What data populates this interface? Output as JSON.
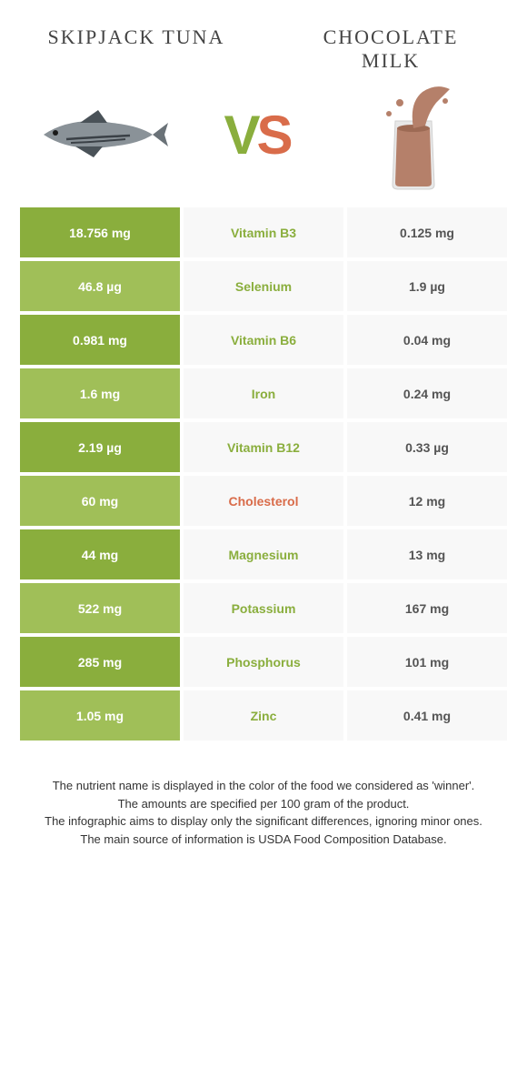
{
  "header": {
    "left": "Skipjack tuna",
    "right": "Chocolate milk"
  },
  "vs": {
    "v": "V",
    "s": "S"
  },
  "colors": {
    "left": "#8aae3d",
    "right": "#d96c4a",
    "leftLight": "#a0bf58",
    "midBg": "#f8f8f8",
    "rightBg": "#f8f8f8",
    "white": "#ffffff"
  },
  "rows": [
    {
      "left": "18.756 mg",
      "name": "Vitamin B3",
      "right": "0.125 mg",
      "winner": "left"
    },
    {
      "left": "46.8 µg",
      "name": "Selenium",
      "right": "1.9 µg",
      "winner": "left"
    },
    {
      "left": "0.981 mg",
      "name": "Vitamin B6",
      "right": "0.04 mg",
      "winner": "left"
    },
    {
      "left": "1.6 mg",
      "name": "Iron",
      "right": "0.24 mg",
      "winner": "left"
    },
    {
      "left": "2.19 µg",
      "name": "Vitamin B12",
      "right": "0.33 µg",
      "winner": "left"
    },
    {
      "left": "60 mg",
      "name": "Cholesterol",
      "right": "12 mg",
      "winner": "right"
    },
    {
      "left": "44 mg",
      "name": "Magnesium",
      "right": "13 mg",
      "winner": "left"
    },
    {
      "left": "522 mg",
      "name": "Potassium",
      "right": "167 mg",
      "winner": "left"
    },
    {
      "left": "285 mg",
      "name": "Phosphorus",
      "right": "101 mg",
      "winner": "left"
    },
    {
      "left": "1.05 mg",
      "name": "Zinc",
      "right": "0.41 mg",
      "winner": "left"
    }
  ],
  "footer": {
    "line1": "The nutrient name is displayed in the color of the food we considered as 'winner'.",
    "line2": "The amounts are specified per 100 gram of the product.",
    "line3": "The infographic aims to display only the significant differences, ignoring minor ones.",
    "line4": "The main source of information is USDA Food Composition Database."
  },
  "icons": {
    "tuna_body": "#8a9298",
    "tuna_stripe": "#3a4046",
    "milk_cup": "#e8e8e8",
    "milk_liquid": "#b5806a"
  }
}
